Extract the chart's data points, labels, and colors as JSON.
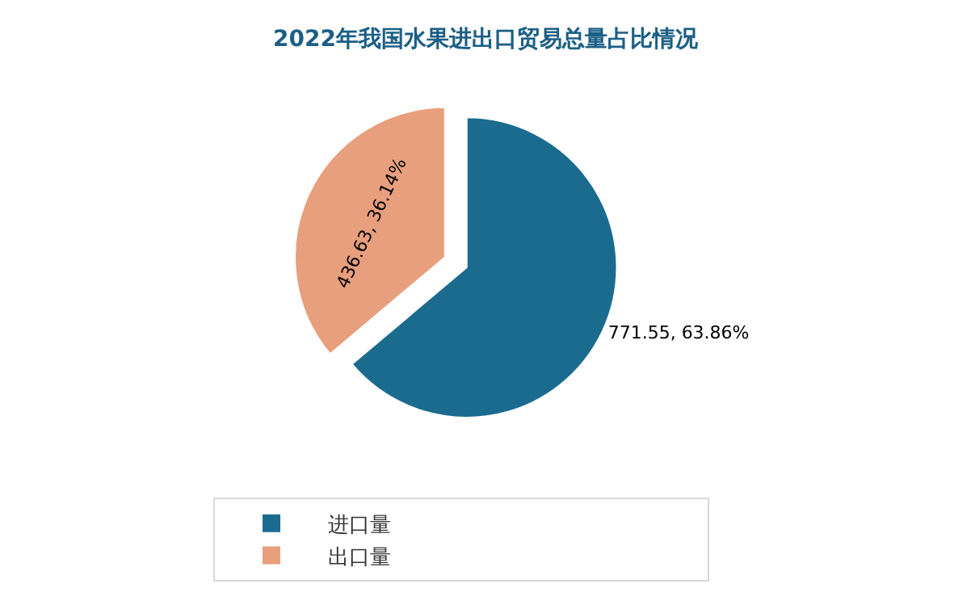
{
  "chart_data": {
    "type": "pie",
    "title": "2022年我国水果进出口贸易总量占比情况",
    "categories": [
      "进口量",
      "出口量"
    ],
    "values": [
      771.55,
      436.63
    ],
    "colors": [
      "#1b6b8f",
      "#e89f7d"
    ],
    "value_labels": [
      "771.55, 63.86%",
      "436.63, 36.14%"
    ],
    "legend": "bottom"
  }
}
